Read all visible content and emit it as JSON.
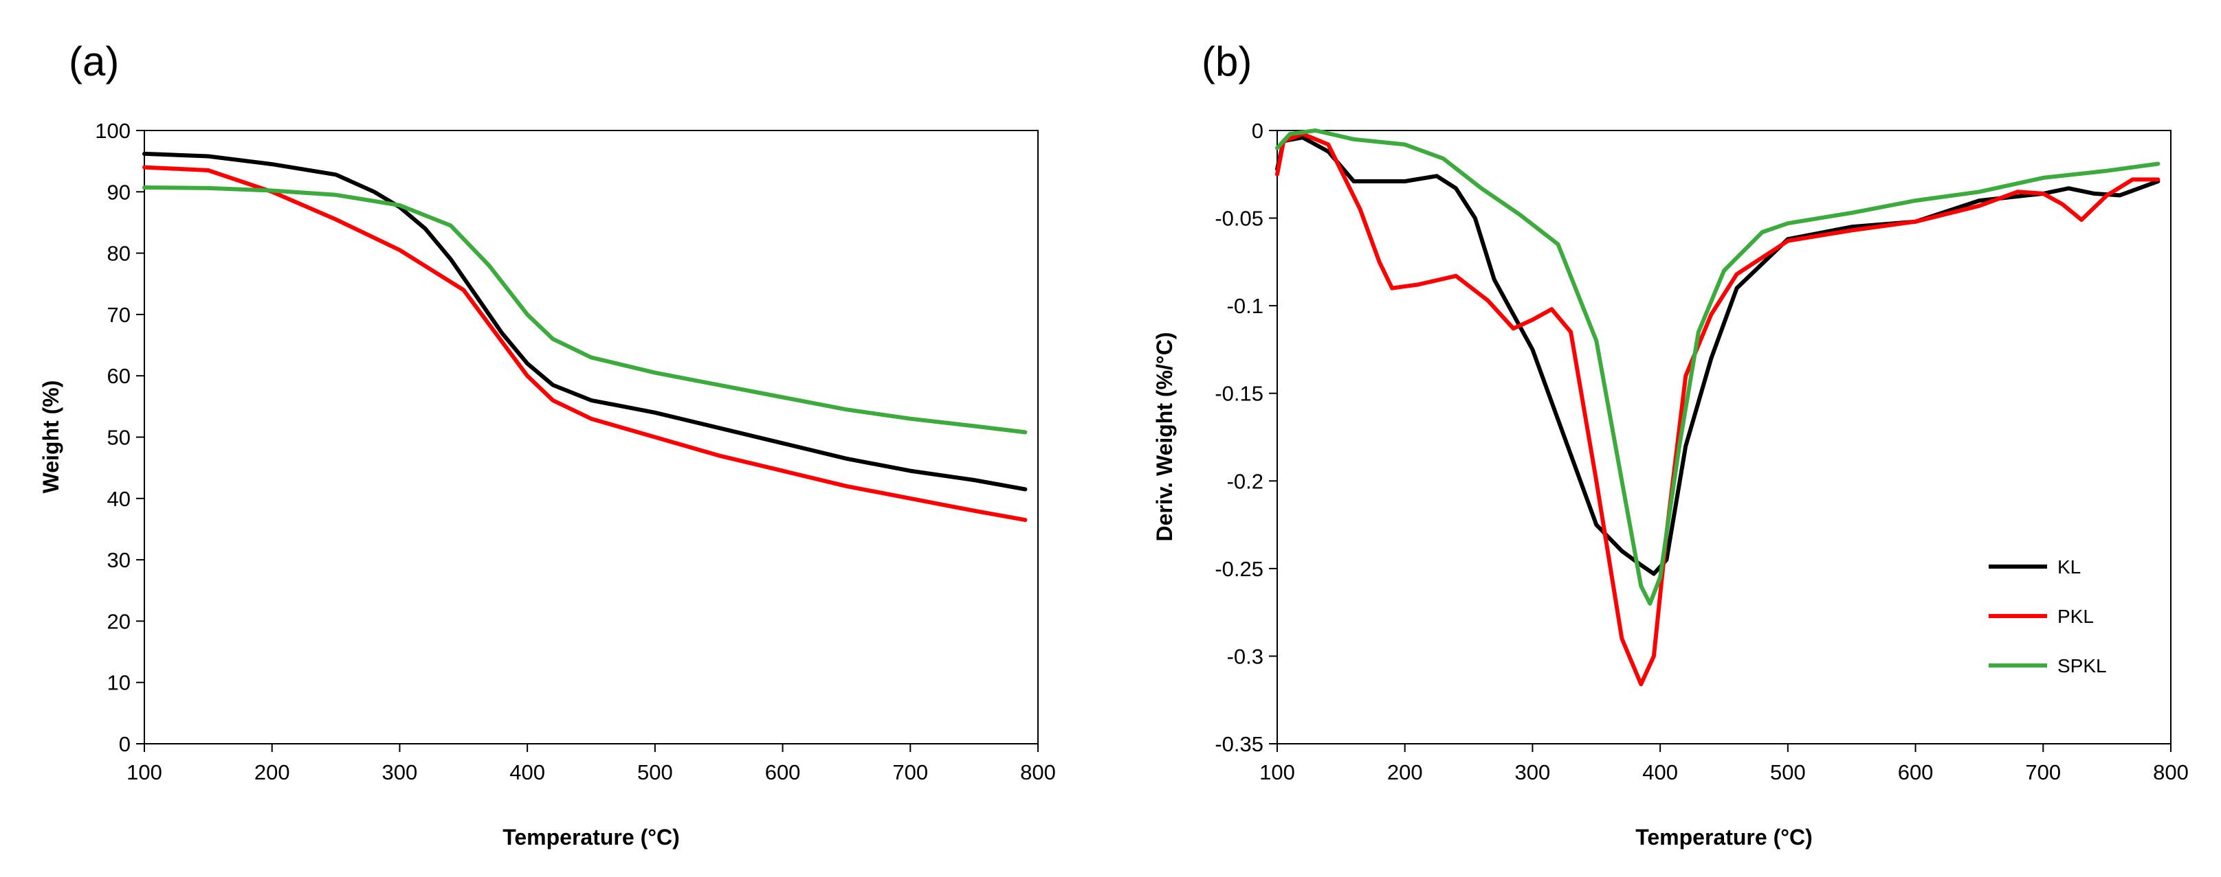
{
  "chart_data": [
    {
      "type": "line",
      "panel_label": "(a)",
      "title": "",
      "xlabel": "Temperature (°C)",
      "ylabel": "Weight (%)",
      "xlim": [
        100,
        800
      ],
      "ylim": [
        0,
        100
      ],
      "x_ticks": [
        100,
        200,
        300,
        400,
        500,
        600,
        700,
        800
      ],
      "y_ticks": [
        0,
        10,
        20,
        30,
        40,
        50,
        60,
        70,
        80,
        90,
        100
      ],
      "grid": false,
      "series": [
        {
          "name": "KL",
          "color": "#000000",
          "points": [
            [
              100,
              96.2
            ],
            [
              150,
              95.8
            ],
            [
              200,
              94.5
            ],
            [
              250,
              92.8
            ],
            [
              280,
              90
            ],
            [
              300,
              87.5
            ],
            [
              320,
              84
            ],
            [
              340,
              79
            ],
            [
              360,
              73
            ],
            [
              380,
              67
            ],
            [
              400,
              62
            ],
            [
              420,
              58.5
            ],
            [
              450,
              56
            ],
            [
              500,
              54
            ],
            [
              550,
              51.5
            ],
            [
              600,
              49
            ],
            [
              650,
              46.5
            ],
            [
              700,
              44.5
            ],
            [
              750,
              43
            ],
            [
              790,
              41.5
            ]
          ]
        },
        {
          "name": "PKL",
          "color": "#ff0000",
          "points": [
            [
              100,
              94
            ],
            [
              150,
              93.5
            ],
            [
              200,
              90
            ],
            [
              250,
              85.5
            ],
            [
              300,
              80.5
            ],
            [
              350,
              74
            ],
            [
              375,
              67
            ],
            [
              400,
              60
            ],
            [
              420,
              56
            ],
            [
              450,
              53
            ],
            [
              500,
              50
            ],
            [
              550,
              47
            ],
            [
              600,
              44.5
            ],
            [
              650,
              42
            ],
            [
              700,
              40
            ],
            [
              750,
              38
            ],
            [
              790,
              36.5
            ]
          ]
        },
        {
          "name": "SPKL",
          "color": "#3daa3d",
          "points": [
            [
              100,
              90.7
            ],
            [
              150,
              90.6
            ],
            [
              200,
              90.2
            ],
            [
              250,
              89.5
            ],
            [
              300,
              87.8
            ],
            [
              340,
              84.5
            ],
            [
              370,
              78
            ],
            [
              400,
              70
            ],
            [
              420,
              66
            ],
            [
              450,
              63
            ],
            [
              500,
              60.5
            ],
            [
              550,
              58.5
            ],
            [
              600,
              56.5
            ],
            [
              650,
              54.5
            ],
            [
              700,
              53
            ],
            [
              750,
              51.8
            ],
            [
              790,
              50.8
            ]
          ]
        }
      ]
    },
    {
      "type": "line",
      "panel_label": "(b)",
      "title": "",
      "xlabel": "Temperature (°C)",
      "ylabel": "Deriv. Weight (%/°C)",
      "xlim": [
        100,
        800
      ],
      "ylim": [
        -0.35,
        0
      ],
      "x_ticks": [
        100,
        200,
        300,
        400,
        500,
        600,
        700,
        800
      ],
      "y_ticks": [
        0,
        -0.05,
        -0.1,
        -0.15,
        -0.2,
        -0.25,
        -0.3,
        -0.35
      ],
      "y_tick_labels": [
        "0",
        "-0.05",
        "-0.1",
        "-0.15",
        "-0.2",
        "-0.25",
        "-0.3",
        "-0.35"
      ],
      "grid": false,
      "legend_position": "lower-right",
      "series": [
        {
          "name": "KL",
          "color": "#000000",
          "points": [
            [
              100,
              -0.022
            ],
            [
              105,
              -0.006
            ],
            [
              120,
              -0.004
            ],
            [
              140,
              -0.012
            ],
            [
              160,
              -0.029
            ],
            [
              200,
              -0.029
            ],
            [
              225,
              -0.026
            ],
            [
              240,
              -0.033
            ],
            [
              255,
              -0.05
            ],
            [
              270,
              -0.085
            ],
            [
              300,
              -0.125
            ],
            [
              330,
              -0.185
            ],
            [
              350,
              -0.225
            ],
            [
              370,
              -0.24
            ],
            [
              385,
              -0.248
            ],
            [
              395,
              -0.253
            ],
            [
              405,
              -0.245
            ],
            [
              420,
              -0.18
            ],
            [
              440,
              -0.13
            ],
            [
              460,
              -0.09
            ],
            [
              500,
              -0.062
            ],
            [
              550,
              -0.055
            ],
            [
              600,
              -0.052
            ],
            [
              650,
              -0.04
            ],
            [
              700,
              -0.036
            ],
            [
              720,
              -0.033
            ],
            [
              740,
              -0.036
            ],
            [
              760,
              -0.037
            ],
            [
              790,
              -0.029
            ]
          ]
        },
        {
          "name": "PKL",
          "color": "#ff0000",
          "points": [
            [
              100,
              -0.025
            ],
            [
              105,
              -0.006
            ],
            [
              120,
              -0.002
            ],
            [
              140,
              -0.008
            ],
            [
              165,
              -0.045
            ],
            [
              180,
              -0.075
            ],
            [
              190,
              -0.09
            ],
            [
              210,
              -0.088
            ],
            [
              240,
              -0.083
            ],
            [
              265,
              -0.097
            ],
            [
              285,
              -0.113
            ],
            [
              300,
              -0.108
            ],
            [
              315,
              -0.102
            ],
            [
              330,
              -0.115
            ],
            [
              350,
              -0.2
            ],
            [
              370,
              -0.29
            ],
            [
              385,
              -0.316
            ],
            [
              395,
              -0.3
            ],
            [
              405,
              -0.23
            ],
            [
              420,
              -0.14
            ],
            [
              440,
              -0.105
            ],
            [
              460,
              -0.082
            ],
            [
              500,
              -0.063
            ],
            [
              550,
              -0.057
            ],
            [
              600,
              -0.052
            ],
            [
              650,
              -0.043
            ],
            [
              680,
              -0.035
            ],
            [
              700,
              -0.036
            ],
            [
              715,
              -0.042
            ],
            [
              730,
              -0.051
            ],
            [
              750,
              -0.037
            ],
            [
              770,
              -0.028
            ],
            [
              790,
              -0.028
            ]
          ]
        },
        {
          "name": "SPKL",
          "color": "#3daa3d",
          "points": [
            [
              100,
              -0.01
            ],
            [
              110,
              -0.002
            ],
            [
              130,
              0
            ],
            [
              160,
              -0.005
            ],
            [
              200,
              -0.008
            ],
            [
              230,
              -0.016
            ],
            [
              260,
              -0.033
            ],
            [
              290,
              -0.048
            ],
            [
              320,
              -0.065
            ],
            [
              350,
              -0.12
            ],
            [
              370,
              -0.2
            ],
            [
              385,
              -0.26
            ],
            [
              392,
              -0.27
            ],
            [
              400,
              -0.255
            ],
            [
              415,
              -0.18
            ],
            [
              430,
              -0.115
            ],
            [
              450,
              -0.08
            ],
            [
              480,
              -0.058
            ],
            [
              500,
              -0.053
            ],
            [
              550,
              -0.047
            ],
            [
              600,
              -0.04
            ],
            [
              650,
              -0.035
            ],
            [
              700,
              -0.027
            ],
            [
              750,
              -0.023
            ],
            [
              790,
              -0.019
            ]
          ]
        }
      ]
    }
  ]
}
